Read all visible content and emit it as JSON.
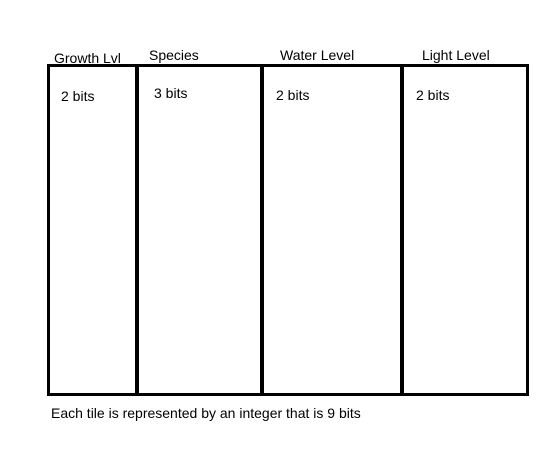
{
  "diagram": {
    "fields": [
      {
        "name": "Growth Lvl",
        "size": "2 bits"
      },
      {
        "name": "Species",
        "size": "3 bits"
      },
      {
        "name": "Water Level",
        "size": "2 bits"
      },
      {
        "name": "Light Level",
        "size": "2 bits"
      }
    ],
    "caption": "Each tile is represented by an integer that is 9 bits"
  }
}
